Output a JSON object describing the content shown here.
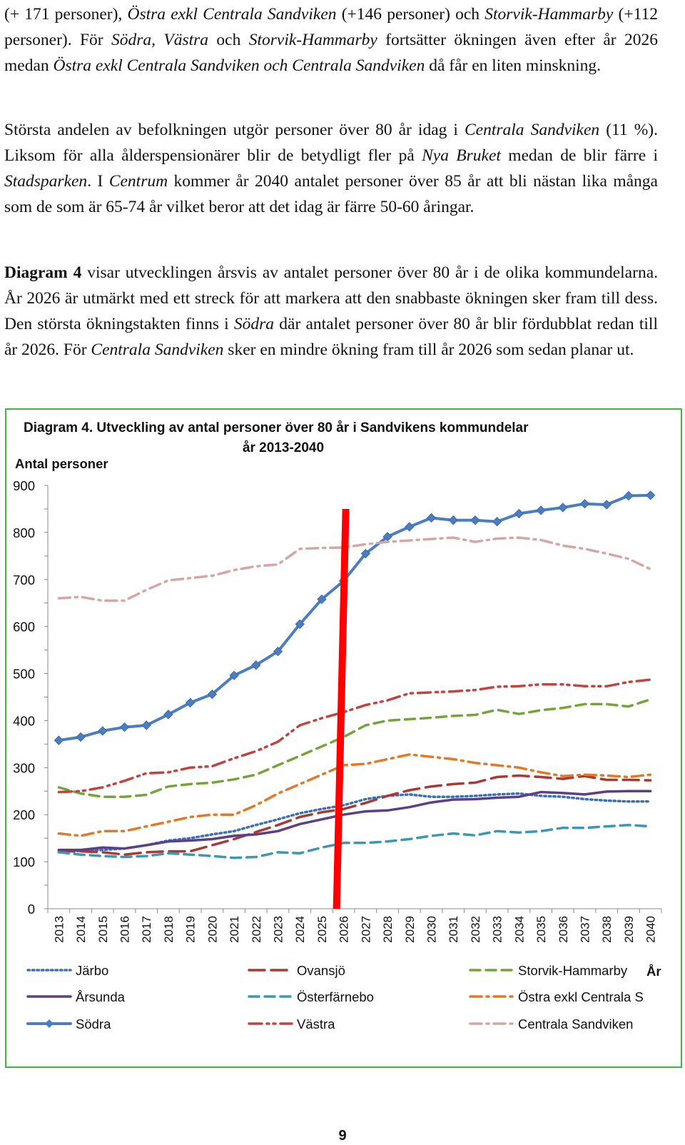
{
  "document": {
    "paragraph_1": [
      {
        "t": "(+ 171 personer), "
      },
      {
        "t": "Östra exkl Centrala Sandviken",
        "i": true
      },
      {
        "t": " (+146 personer) och "
      },
      {
        "t": "Storvik-Hammarby",
        "i": true
      },
      {
        "t": " (+112 personer). För "
      },
      {
        "t": "Södra, Västra",
        "i": true
      },
      {
        "t": " och "
      },
      {
        "t": "Storvik-Hammarby",
        "i": true
      },
      {
        "t": " fortsätter ökningen även efter år 2026 medan "
      },
      {
        "t": "Östra exkl Centrala Sandviken och Centrala Sandviken",
        "i": true
      },
      {
        "t": " då får en liten minskning."
      }
    ],
    "paragraph_2": [
      {
        "t": "Största andelen av befolkningen utgör personer över 80 år idag i "
      },
      {
        "t": "Centrala Sandviken",
        "i": true
      },
      {
        "t": " (11 %). Liksom för alla ålderspensionärer blir de betydligt fler på "
      },
      {
        "t": "Nya Bruket",
        "i": true
      },
      {
        "t": " medan de blir färre i "
      },
      {
        "t": "Stadsparken",
        "i": true
      },
      {
        "t": ". I "
      },
      {
        "t": "Centrum",
        "i": true
      },
      {
        "t": " kommer år 2040 antalet personer över 85 år att bli nästan lika många som de som är 65-74 år vilket beror att det idag är färre 50-60 åringar."
      }
    ],
    "paragraph_3": [
      {
        "t": "Diagram 4",
        "b": true
      },
      {
        "t": " visar utvecklingen årsvis av antalet personer över 80 år i de olika kommundelarna. År 2026 är utmärkt med ett streck för att markera att den snabbaste ökningen sker fram till dess. Den största ökningstakten finns i "
      },
      {
        "t": "Södra",
        "i": true
      },
      {
        "t": " där antalet personer över 80 år blir fördubblat redan till år 2026.  För "
      },
      {
        "t": "Centrala Sandviken",
        "i": true
      },
      {
        "t": " sker en mindre ökning fram till år 2026 som sedan planar ut."
      }
    ],
    "page_number": "9"
  },
  "chart_data": {
    "type": "line",
    "title_line1": "Diagram 4. Utveckling av antal personer över 80 år i Sandvikens kommundelar",
    "title_line2": "år 2013-2040",
    "ylabel": "Antal personer",
    "xlabel": "År",
    "ylim": [
      0,
      900
    ],
    "yticks": [
      0,
      100,
      200,
      300,
      400,
      500,
      600,
      700,
      800,
      900
    ],
    "x": [
      2013,
      2014,
      2015,
      2016,
      2017,
      2018,
      2019,
      2020,
      2021,
      2022,
      2023,
      2024,
      2025,
      2026,
      2027,
      2028,
      2029,
      2030,
      2031,
      2032,
      2033,
      2034,
      2035,
      2036,
      2037,
      2038,
      2039,
      2040
    ],
    "marker_year": 2026,
    "marker_color": "#ff0000",
    "grid": false,
    "legend_position": "bottom",
    "series": [
      {
        "name": "Järbo",
        "color": "#3b6fb6",
        "dash": "dot",
        "values": [
          120,
          123,
          125,
          128,
          135,
          145,
          150,
          158,
          165,
          178,
          190,
          203,
          212,
          220,
          233,
          240,
          243,
          238,
          238,
          240,
          243,
          245,
          240,
          238,
          233,
          230,
          228,
          228
        ]
      },
      {
        "name": "Ovansjö",
        "color": "#a83a36",
        "dash": "longdash",
        "values": [
          122,
          122,
          120,
          115,
          120,
          122,
          122,
          135,
          148,
          163,
          178,
          195,
          205,
          212,
          225,
          240,
          252,
          260,
          265,
          268,
          280,
          283,
          280,
          276,
          282,
          274,
          274,
          273
        ]
      },
      {
        "name": "Storvik-Hammarby",
        "color": "#77a33c",
        "dash": "dash",
        "values": [
          258,
          245,
          238,
          238,
          242,
          260,
          265,
          268,
          275,
          285,
          305,
          325,
          345,
          365,
          390,
          400,
          403,
          406,
          410,
          412,
          423,
          414,
          422,
          427,
          435,
          435,
          430,
          445
        ]
      },
      {
        "name": "Årsunda",
        "color": "#5b3f87",
        "dash": "solid",
        "values": [
          125,
          125,
          130,
          128,
          135,
          143,
          145,
          148,
          155,
          158,
          165,
          180,
          190,
          200,
          207,
          209,
          216,
          226,
          232,
          233,
          236,
          238,
          248,
          246,
          243,
          249,
          250,
          250
        ]
      },
      {
        "name": "Österfärnebo",
        "color": "#3a98b0",
        "dash": "dash",
        "values": [
          120,
          115,
          112,
          110,
          112,
          118,
          115,
          112,
          108,
          110,
          120,
          118,
          130,
          140,
          140,
          143,
          148,
          155,
          160,
          156,
          165,
          162,
          165,
          172,
          172,
          175,
          178,
          175
        ]
      },
      {
        "name": "Östra exkl Centrala S",
        "color": "#e07a26",
        "dash": "dashdot",
        "values": [
          160,
          155,
          165,
          165,
          175,
          185,
          195,
          200,
          200,
          220,
          245,
          265,
          285,
          305,
          308,
          318,
          328,
          323,
          318,
          310,
          305,
          300,
          290,
          282,
          285,
          283,
          280,
          285
        ]
      },
      {
        "name": "Södra",
        "color": "#4a7ec1",
        "dash": "solid",
        "marker": "diamond",
        "values": [
          358,
          365,
          378,
          386,
          390,
          413,
          438,
          456,
          496,
          518,
          547,
          605,
          658,
          697,
          755,
          791,
          812,
          831,
          826,
          826,
          823,
          840,
          847,
          853,
          861,
          859,
          878,
          879
        ]
      },
      {
        "name": "Västra",
        "color": "#c0433f",
        "dash": "dashdotdot",
        "values": [
          248,
          250,
          258,
          272,
          288,
          290,
          300,
          303,
          320,
          335,
          355,
          390,
          405,
          418,
          433,
          443,
          458,
          460,
          462,
          465,
          472,
          473,
          477,
          477,
          473,
          473,
          482,
          487
        ]
      },
      {
        "name": "Centrala Sandviken",
        "color": "#d4a6a4",
        "dash": "dashdot",
        "values": [
          660,
          663,
          655,
          655,
          678,
          698,
          703,
          708,
          720,
          728,
          732,
          765,
          767,
          768,
          775,
          780,
          783,
          786,
          789,
          780,
          787,
          789,
          784,
          772,
          765,
          755,
          744,
          722
        ]
      }
    ]
  }
}
